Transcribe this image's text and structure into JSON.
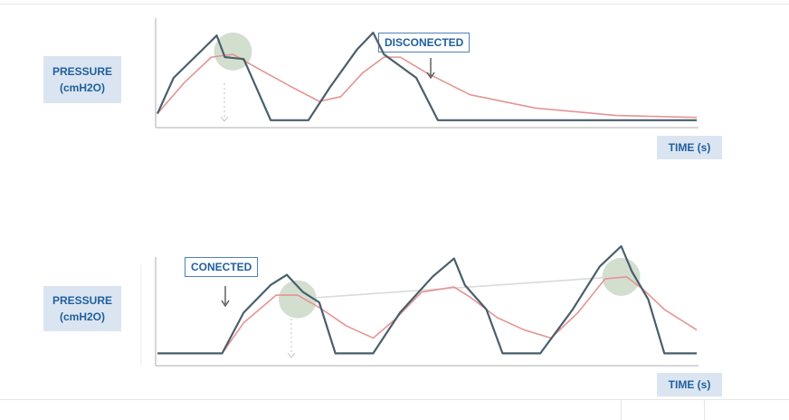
{
  "chart_data": [
    {
      "type": "line",
      "ylabel": "PRESSURE (cmH2O)",
      "ylabel_lines": [
        "PRESSURE",
        "(cmH2O)"
      ],
      "xlabel": "TIME (s)",
      "annotation": "DISCONECTED",
      "series": [
        {
          "color": "#4a5f6b",
          "points": [
            [
              0,
              12
            ],
            [
              3,
              50
            ],
            [
              8,
              78
            ],
            [
              11,
              95
            ],
            [
              12.5,
              72
            ],
            [
              16,
              70
            ],
            [
              21,
              5
            ],
            [
              28,
              5
            ],
            [
              32,
              40
            ],
            [
              37,
              80
            ],
            [
              40,
              98
            ],
            [
              42,
              75
            ],
            [
              48,
              50
            ],
            [
              52,
              5
            ],
            [
              100,
              5
            ]
          ]
        },
        {
          "color": "#e59494",
          "points": [
            [
              0,
              12
            ],
            [
              5,
              45
            ],
            [
              10,
              72
            ],
            [
              14,
              75
            ],
            [
              18,
              62
            ],
            [
              25,
              40
            ],
            [
              30,
              25
            ],
            [
              34,
              30
            ],
            [
              38,
              55
            ],
            [
              42,
              72
            ],
            [
              45,
              72
            ],
            [
              50,
              55
            ],
            [
              58,
              32
            ],
            [
              70,
              18
            ],
            [
              85,
              10
            ],
            [
              100,
              8
            ]
          ]
        }
      ],
      "highlights": [
        {
          "x": 14,
          "y": 78
        }
      ]
    },
    {
      "type": "line",
      "ylabel": "PRESSURE (cmH2O)",
      "ylabel_lines": [
        "PRESSURE",
        "(cmH2O)"
      ],
      "xlabel": "TIME (s)",
      "annotation": "CONECTED",
      "series": [
        {
          "color": "#4a5f6b",
          "points": [
            [
              0,
              5
            ],
            [
              12,
              5
            ],
            [
              16,
              45
            ],
            [
              21,
              72
            ],
            [
              24,
              82
            ],
            [
              27,
              65
            ],
            [
              30,
              55
            ],
            [
              33,
              5
            ],
            [
              40,
              5
            ],
            [
              45,
              45
            ],
            [
              51,
              80
            ],
            [
              55,
              98
            ],
            [
              57,
              72
            ],
            [
              61,
              48
            ],
            [
              64,
              5
            ],
            [
              71,
              5
            ],
            [
              77,
              48
            ],
            [
              82,
              90
            ],
            [
              86,
              110
            ],
            [
              88,
              85
            ],
            [
              91,
              58
            ],
            [
              94,
              5
            ],
            [
              100,
              5
            ]
          ]
        },
        {
          "color": "#e59494",
          "points": [
            [
              0,
              5
            ],
            [
              12,
              5
            ],
            [
              16,
              35
            ],
            [
              22,
              62
            ],
            [
              26,
              62
            ],
            [
              30,
              50
            ],
            [
              35,
              32
            ],
            [
              40,
              20
            ],
            [
              44,
              38
            ],
            [
              49,
              65
            ],
            [
              55,
              70
            ],
            [
              58,
              60
            ],
            [
              63,
              40
            ],
            [
              68,
              28
            ],
            [
              73,
              20
            ],
            [
              78,
              45
            ],
            [
              83,
              78
            ],
            [
              87,
              80
            ],
            [
              90,
              68
            ],
            [
              94,
              48
            ],
            [
              100,
              28
            ]
          ]
        },
        {
          "color": "#dadada",
          "points": [
            [
              25,
              58
            ],
            [
              85,
              80
            ]
          ]
        }
      ],
      "highlights": [
        {
          "x": 26,
          "y": 58
        },
        {
          "x": 86,
          "y": 80
        }
      ]
    }
  ]
}
